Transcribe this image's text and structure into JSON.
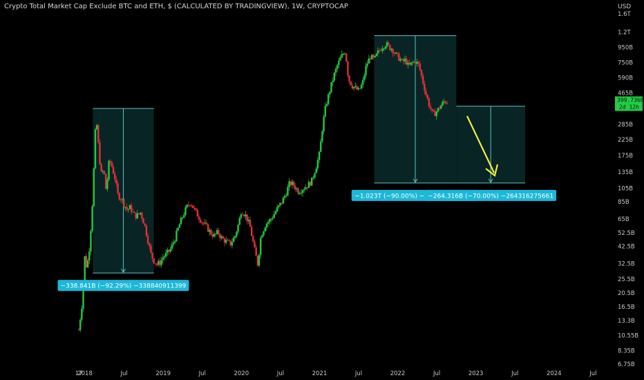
{
  "header": {
    "title": "Crypto Total Market Cap Exclude BTC and ETH, $ (CALCULATED BY TRADINGVIEW), 1W, CRYPTOCAP"
  },
  "colors": {
    "background": "#000000",
    "up": "#26c840",
    "down": "#e0303a",
    "measure_fill": "#0b2a2a",
    "measure_line": "#5fc4c8",
    "measure_label_bg": "#1bb8d8",
    "arrow": "#f0f040",
    "price_label_bg": "#22cc44"
  },
  "chart_data": {
    "type": "candlestick",
    "title": "Crypto Total Market Cap Exclude BTC and ETH, $ (CALCULATED BY TRADINGVIEW), 1W, CRYPTOCAP",
    "interval": "1W",
    "scale": "log",
    "currency": "USD",
    "ylim_billions": [
      6.75,
      1600
    ],
    "y_ticks": [
      {
        "label": "1.6T",
        "v": 1600
      },
      {
        "label": "1.2T",
        "v": 1200
      },
      {
        "label": "950B",
        "v": 950
      },
      {
        "label": "750B",
        "v": 750
      },
      {
        "label": "590B",
        "v": 590
      },
      {
        "label": "465B",
        "v": 465
      },
      {
        "label": "365B",
        "v": 365
      },
      {
        "label": "285B",
        "v": 285
      },
      {
        "label": "225B",
        "v": 225
      },
      {
        "label": "175B",
        "v": 175
      },
      {
        "label": "135B",
        "v": 135
      },
      {
        "label": "105B",
        "v": 105
      },
      {
        "label": "85B",
        "v": 85
      },
      {
        "label": "65B",
        "v": 65
      },
      {
        "label": "52.5B",
        "v": 52.5
      },
      {
        "label": "42.5B",
        "v": 42.5
      },
      {
        "label": "32.5B",
        "v": 32.5
      },
      {
        "label": "25.5B",
        "v": 25.5
      },
      {
        "label": "20.5B",
        "v": 20.5
      },
      {
        "label": "16.5B",
        "v": 16.5
      },
      {
        "label": "13.3B",
        "v": 13.3
      },
      {
        "label": "10.55B",
        "v": 10.55
      },
      {
        "label": "8.35B",
        "v": 8.35
      },
      {
        "label": "6.75B",
        "v": 6.75
      }
    ],
    "x_ticks": [
      {
        "label": "17",
        "t": 2017.92
      },
      {
        "label": "2018",
        "t": 2018.0
      },
      {
        "label": "Jul",
        "t": 2018.5
      },
      {
        "label": "2019",
        "t": 2019.0
      },
      {
        "label": "Jul",
        "t": 2019.5
      },
      {
        "label": "2020",
        "t": 2020.0
      },
      {
        "label": "Jul",
        "t": 2020.5
      },
      {
        "label": "2021",
        "t": 2021.0
      },
      {
        "label": "Jul",
        "t": 2021.5
      },
      {
        "label": "2022",
        "t": 2022.0
      },
      {
        "label": "Jul",
        "t": 2022.5
      },
      {
        "label": "2023",
        "t": 2023.0
      },
      {
        "label": "Jul",
        "t": 2023.5
      },
      {
        "label": "2024",
        "t": 2024.0
      },
      {
        "label": "Jul",
        "t": 2024.5
      }
    ],
    "xlim": [
      2017.5,
      2024.7
    ],
    "price_path_billions": [
      [
        2017.92,
        11.5
      ],
      [
        2017.96,
        17
      ],
      [
        2017.98,
        26
      ],
      [
        2018.0,
        38
      ],
      [
        2018.02,
        30
      ],
      [
        2018.05,
        38
      ],
      [
        2018.08,
        62
      ],
      [
        2018.1,
        95
      ],
      [
        2018.12,
        180
      ],
      [
        2018.14,
        320
      ],
      [
        2018.16,
        250
      ],
      [
        2018.18,
        175
      ],
      [
        2018.21,
        130
      ],
      [
        2018.24,
        140
      ],
      [
        2018.27,
        100
      ],
      [
        2018.31,
        165
      ],
      [
        2018.34,
        150
      ],
      [
        2018.38,
        125
      ],
      [
        2018.42,
        95
      ],
      [
        2018.46,
        90
      ],
      [
        2018.5,
        82
      ],
      [
        2018.54,
        75
      ],
      [
        2018.58,
        78
      ],
      [
        2018.62,
        70
      ],
      [
        2018.66,
        68
      ],
      [
        2018.71,
        72
      ],
      [
        2018.76,
        60
      ],
      [
        2018.8,
        48
      ],
      [
        2018.84,
        38
      ],
      [
        2018.88,
        34
      ],
      [
        2018.92,
        32
      ],
      [
        2018.96,
        33
      ],
      [
        2019.0,
        36
      ],
      [
        2019.05,
        38
      ],
      [
        2019.1,
        41
      ],
      [
        2019.15,
        48
      ],
      [
        2019.2,
        58
      ],
      [
        2019.25,
        68
      ],
      [
        2019.3,
        78
      ],
      [
        2019.35,
        85
      ],
      [
        2019.4,
        75
      ],
      [
        2019.45,
        68
      ],
      [
        2019.5,
        62
      ],
      [
        2019.55,
        58
      ],
      [
        2019.6,
        53
      ],
      [
        2019.65,
        50
      ],
      [
        2019.7,
        53
      ],
      [
        2019.75,
        48
      ],
      [
        2019.8,
        46
      ],
      [
        2019.86,
        44
      ],
      [
        2019.92,
        50
      ],
      [
        2019.97,
        62
      ],
      [
        2020.0,
        75
      ],
      [
        2020.06,
        68
      ],
      [
        2020.11,
        58
      ],
      [
        2020.17,
        40
      ],
      [
        2020.21,
        32
      ],
      [
        2020.25,
        50
      ],
      [
        2020.31,
        60
      ],
      [
        2020.38,
        65
      ],
      [
        2020.45,
        75
      ],
      [
        2020.52,
        85
      ],
      [
        2020.58,
        100
      ],
      [
        2020.62,
        115
      ],
      [
        2020.67,
        110
      ],
      [
        2020.73,
        100
      ],
      [
        2020.79,
        105
      ],
      [
        2020.85,
        110
      ],
      [
        2020.9,
        118
      ],
      [
        2020.96,
        150
      ],
      [
        2021.0,
        180
      ],
      [
        2021.04,
        280
      ],
      [
        2021.08,
        380
      ],
      [
        2021.13,
        480
      ],
      [
        2021.18,
        600
      ],
      [
        2021.23,
        720
      ],
      [
        2021.28,
        820
      ],
      [
        2021.33,
        900
      ],
      [
        2021.37,
        580
      ],
      [
        2021.42,
        520
      ],
      [
        2021.46,
        500
      ],
      [
        2021.5,
        480
      ],
      [
        2021.55,
        540
      ],
      [
        2021.6,
        720
      ],
      [
        2021.65,
        820
      ],
      [
        2021.7,
        780
      ],
      [
        2021.75,
        880
      ],
      [
        2021.8,
        960
      ],
      [
        2021.85,
        1000
      ],
      [
        2021.89,
        950
      ],
      [
        2021.93,
        930
      ],
      [
        2021.97,
        850
      ],
      [
        2022.02,
        800
      ],
      [
        2022.06,
        750
      ],
      [
        2022.1,
        780
      ],
      [
        2022.14,
        700
      ],
      [
        2022.18,
        740
      ],
      [
        2022.23,
        760
      ],
      [
        2022.27,
        720
      ],
      [
        2022.32,
        560
      ],
      [
        2022.36,
        460
      ],
      [
        2022.4,
        390
      ],
      [
        2022.45,
        330
      ],
      [
        2022.5,
        350
      ],
      [
        2022.55,
        380
      ],
      [
        2022.6,
        410
      ],
      [
        2022.64,
        400
      ]
    ],
    "last_price_label": "399.736B",
    "countdown_label": "2d 12h",
    "measurements": [
      {
        "label": "−338.841B (−92.29%) −338840911399",
        "from_t": 2018.1,
        "to_t": 2018.88,
        "top_b": 365,
        "bottom_b": 28
      },
      {
        "label": "−1.023T (−90.00%) −1023170934495",
        "from_t": 2021.7,
        "to_t": 2022.75,
        "top_b": 1137,
        "bottom_b": 114
      },
      {
        "label": "−264.316B (−70.00%) −264316275661",
        "from_t": 2022.75,
        "to_t": 2023.63,
        "top_b": 378,
        "bottom_b": 114
      }
    ]
  }
}
